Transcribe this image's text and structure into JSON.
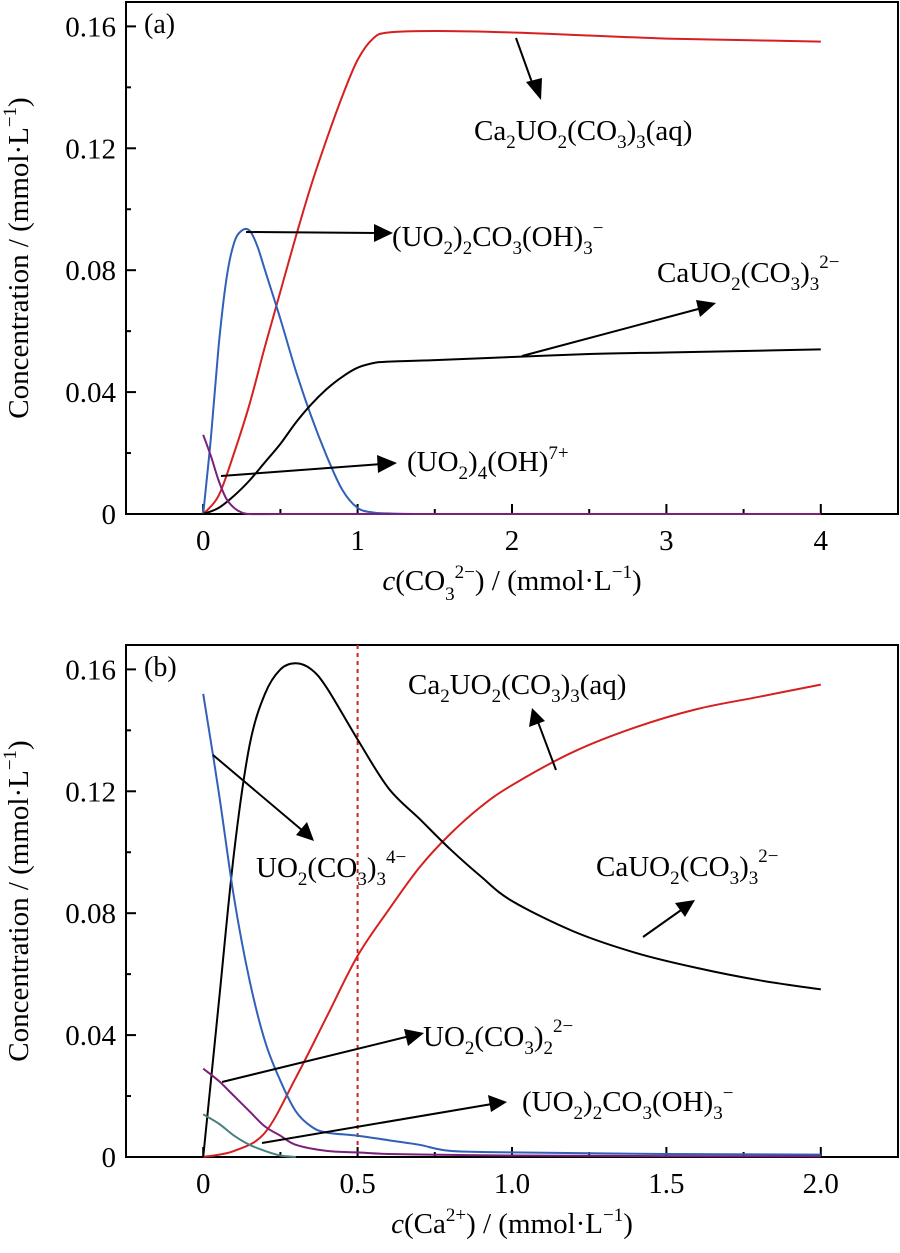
{
  "chart_data": [
    {
      "type": "line",
      "panel_label": "(a)",
      "xlabel": "c(CO3^2−) / (mmol·L^−1)",
      "ylabel": "Concentration / (mmol·L^−1)",
      "xlim": [
        -0.5,
        4.5
      ],
      "ylim": [
        0,
        0.168
      ],
      "xticks": [
        0,
        1,
        2,
        3,
        4
      ],
      "xtick_labels": [
        "0",
        "1",
        "2",
        "3",
        "4"
      ],
      "yticks": [
        0,
        0.04,
        0.08,
        0.12,
        0.16
      ],
      "ytick_labels": [
        "0",
        "0.04",
        "0.08",
        "0.12",
        "0.16"
      ],
      "series": [
        {
          "name": "Ca2UO2(CO3)3(aq)",
          "color": "#d62020",
          "x": [
            0,
            0.1,
            0.2,
            0.3,
            0.4,
            0.5,
            0.6,
            0.7,
            0.8,
            0.9,
            1.0,
            1.1,
            1.2,
            1.5,
            2.0,
            2.5,
            3.0,
            3.5,
            4.0
          ],
          "y": [
            0,
            0.006,
            0.02,
            0.036,
            0.055,
            0.073,
            0.091,
            0.108,
            0.123,
            0.137,
            0.149,
            0.156,
            0.158,
            0.1585,
            0.158,
            0.157,
            0.156,
            0.1555,
            0.155
          ]
        },
        {
          "name": "(UO2)2CO3(OH)3−",
          "color": "#3060b8",
          "x": [
            0,
            0.05,
            0.1,
            0.15,
            0.2,
            0.25,
            0.3,
            0.35,
            0.4,
            0.5,
            0.6,
            0.7,
            0.8,
            0.9,
            1.0,
            1.1,
            1.2,
            1.4,
            2.0,
            4.0
          ],
          "y": [
            0,
            0.025,
            0.055,
            0.077,
            0.089,
            0.093,
            0.093,
            0.088,
            0.08,
            0.064,
            0.047,
            0.032,
            0.019,
            0.008,
            0.002,
            0.0005,
            0.0002,
            0,
            0,
            0
          ]
        },
        {
          "name": "CaUO2(CO3)3^2−",
          "color": "#000000",
          "x": [
            0,
            0.1,
            0.2,
            0.3,
            0.4,
            0.5,
            0.6,
            0.7,
            0.8,
            0.9,
            1.0,
            1.1,
            1.2,
            1.5,
            2.0,
            2.5,
            3.0,
            3.5,
            4.0
          ],
          "y": [
            0,
            0.002,
            0.006,
            0.011,
            0.017,
            0.023,
            0.03,
            0.036,
            0.041,
            0.045,
            0.048,
            0.0495,
            0.05,
            0.0505,
            0.0515,
            0.0525,
            0.053,
            0.0535,
            0.054
          ]
        },
        {
          "name": "(UO2)4(OH)7+",
          "color": "#7a1f7a",
          "x": [
            0,
            0.05,
            0.1,
            0.15,
            0.2,
            0.25,
            0.3,
            0.5,
            1.0,
            2.0,
            4.0
          ],
          "y": [
            0.026,
            0.019,
            0.011,
            0.005,
            0.002,
            0.0005,
            0,
            0,
            0,
            0,
            0
          ]
        }
      ],
      "annotations": [
        {
          "label": "Ca2UO2(CO3)3(aq)",
          "base": "Ca",
          "parts": [
            [
              "2",
              ""
            ],
            [
              "UO",
              ""
            ],
            [
              "2",
              ""
            ],
            [
              "(CO",
              ""
            ],
            [
              "3",
              ""
            ],
            [
              ")",
              ""
            ],
            [
              "3",
              ""
            ],
            [
              "(aq)",
              ""
            ]
          ]
        },
        {
          "label": "(UO2)2CO3(OH)3−"
        },
        {
          "label": "CaUO2(CO3)3^2−"
        },
        {
          "label": "(UO2)4(OH)^7+"
        }
      ]
    },
    {
      "type": "line",
      "panel_label": "(b)",
      "xlabel": "c(Ca^2+) / (mmol·L^−1)",
      "ylabel": "Concentration / (mmol·L^−1)",
      "xlim": [
        -0.25,
        2.25
      ],
      "ylim": [
        0,
        0.168
      ],
      "xticks": [
        0,
        0.5,
        1.0,
        1.5,
        2.0
      ],
      "xtick_labels": [
        "0",
        "0.5",
        "1.0",
        "1.5",
        "2.0"
      ],
      "yticks": [
        0,
        0.04,
        0.08,
        0.12,
        0.16
      ],
      "ytick_labels": [
        "0",
        "0.04",
        "0.08",
        "0.12",
        "0.16"
      ],
      "vline_x": 0.5,
      "series": [
        {
          "name": "Ca2UO2(CO3)3(aq)",
          "color": "#d62020",
          "x": [
            0,
            0.1,
            0.2,
            0.3,
            0.4,
            0.5,
            0.6,
            0.7,
            0.8,
            0.9,
            1.0,
            1.2,
            1.4,
            1.6,
            1.8,
            2.0
          ],
          "y": [
            0,
            0.002,
            0.008,
            0.026,
            0.046,
            0.066,
            0.081,
            0.095,
            0.106,
            0.115,
            0.122,
            0.133,
            0.141,
            0.147,
            0.151,
            0.155
          ]
        },
        {
          "name": "CaUO2(CO3)3^2−",
          "color": "#000000",
          "x": [
            0,
            0.05,
            0.1,
            0.15,
            0.2,
            0.25,
            0.3,
            0.35,
            0.4,
            0.5,
            0.6,
            0.7,
            0.8,
            0.9,
            1.0,
            1.2,
            1.4,
            1.6,
            1.8,
            2.0
          ],
          "y": [
            0,
            0.05,
            0.1,
            0.135,
            0.152,
            0.16,
            0.162,
            0.16,
            0.154,
            0.137,
            0.121,
            0.111,
            0.101,
            0.092,
            0.084,
            0.074,
            0.067,
            0.062,
            0.058,
            0.055
          ]
        },
        {
          "name": "UO2(CO3)3^4−",
          "color": "#3060b8",
          "x": [
            0,
            0.05,
            0.1,
            0.15,
            0.2,
            0.25,
            0.3,
            0.35,
            0.4,
            0.5,
            0.6,
            0.7,
            0.8,
            1.0,
            1.5,
            2.0
          ],
          "y": [
            0.152,
            0.12,
            0.085,
            0.058,
            0.038,
            0.025,
            0.015,
            0.01,
            0.008,
            0.007,
            0.0055,
            0.004,
            0.002,
            0.0015,
            0.001,
            0.0008
          ]
        },
        {
          "name": "UO2(CO3)2^2−",
          "color": "#7a1f7a",
          "x": [
            0,
            0.05,
            0.1,
            0.15,
            0.2,
            0.25,
            0.3,
            0.4,
            0.5,
            0.6,
            0.8,
            1.0,
            1.5,
            2.0
          ],
          "y": [
            0.029,
            0.025,
            0.02,
            0.015,
            0.01,
            0.007,
            0.004,
            0.002,
            0.0015,
            0.001,
            0.0007,
            0.0005,
            0.0003,
            0.0002
          ]
        },
        {
          "name": "(UO2)2CO3(OH)3−",
          "color": "#4a8080",
          "x": [
            0,
            0.05,
            0.1,
            0.15,
            0.2,
            0.25,
            0.3
          ],
          "y": [
            0.014,
            0.011,
            0.007,
            0.004,
            0.002,
            0.0005,
            0
          ]
        }
      ],
      "annotations": [
        {
          "label": "Ca2UO2(CO3)3(aq)"
        },
        {
          "label": "UO2(CO3)3^4−"
        },
        {
          "label": "CaUO2(CO3)3^2−"
        },
        {
          "label": "UO2(CO3)2^2−"
        },
        {
          "label": "(UO2)2CO3(OH)3−"
        }
      ]
    }
  ]
}
